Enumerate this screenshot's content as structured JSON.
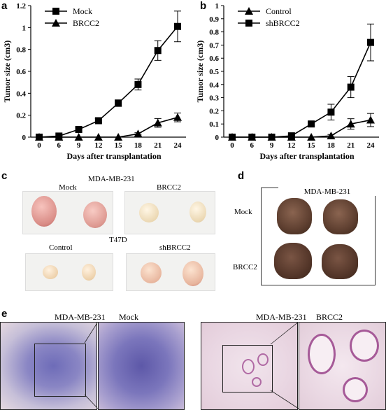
{
  "panel_labels": {
    "a": "a",
    "b": "b",
    "c": "c",
    "d": "d",
    "e": "e"
  },
  "chart_data": [
    {
      "type": "line",
      "ylabel": "Tumor size (cm3)",
      "xlabel": "Days after transplantation",
      "x": [
        0,
        6,
        9,
        12,
        15,
        18,
        21,
        24
      ],
      "yticks": [
        "0",
        "0.2",
        "0.4",
        "0.6",
        "0.8",
        "1",
        "1.2"
      ],
      "ylim": [
        0,
        1.2
      ],
      "series": [
        {
          "name": "Mock",
          "marker": "square",
          "values": [
            0,
            0.01,
            0.07,
            0.15,
            0.31,
            0.48,
            0.79,
            1.01
          ],
          "err": [
            0,
            0,
            0.015,
            0.02,
            0.03,
            0.05,
            0.09,
            0.14
          ]
        },
        {
          "name": "BRCC2",
          "marker": "triangle",
          "values": [
            0,
            0,
            0,
            0,
            0,
            0.03,
            0.13,
            0.18
          ],
          "err": [
            0,
            0,
            0,
            0,
            0,
            0.01,
            0.04,
            0.04
          ]
        }
      ]
    },
    {
      "type": "line",
      "ylabel": "Tumor size (cm3)",
      "xlabel": "Days after transplantation",
      "x": [
        0,
        6,
        9,
        12,
        15,
        18,
        21,
        24
      ],
      "yticks": [
        "0",
        "0.1",
        "0.2",
        "0.3",
        "0.4",
        "0.5",
        "0.6",
        "0.7",
        "0.8",
        "0.9",
        "1"
      ],
      "ylim": [
        0,
        1
      ],
      "series": [
        {
          "name": "Control",
          "marker": "triangle",
          "values": [
            0,
            0,
            0,
            0,
            0,
            0.01,
            0.1,
            0.13
          ],
          "err": [
            0,
            0,
            0,
            0,
            0,
            0.01,
            0.04,
            0.05
          ]
        },
        {
          "name": "shBRCC2",
          "marker": "square",
          "values": [
            0,
            0,
            0,
            0.01,
            0.1,
            0.19,
            0.38,
            0.72
          ],
          "err": [
            0,
            0,
            0,
            0.01,
            0.015,
            0.06,
            0.08,
            0.14
          ]
        }
      ]
    }
  ],
  "panel_c": {
    "cell_line_1": "MDA-MB-231",
    "left_top": "Mock",
    "right_top": "BRCC2",
    "cell_line_2": "T47D",
    "left_bottom": "Control",
    "right_bottom": "shBRCC2"
  },
  "panel_d": {
    "cell_line": "MDA-MB-231",
    "row1": "Mock",
    "row2": "BRCC2"
  },
  "panel_e": {
    "left_cell_line": "MDA-MB-231",
    "left_condition": "Mock",
    "right_cell_line": "MDA-MB-231",
    "right_condition": "BRCC2"
  }
}
